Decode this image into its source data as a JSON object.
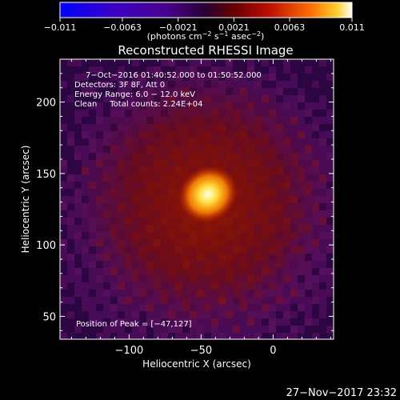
{
  "chart_data": {
    "type": "heatmap",
    "title": "Reconstructed RHESSI Image",
    "xlabel": "Heliocentric X (arcsec)",
    "ylabel": "Heliocentric Y (arcsec)",
    "xlim": [
      -148,
      42
    ],
    "ylim": [
      34,
      230
    ],
    "x_ticks": [
      -100,
      -50,
      0
    ],
    "y_ticks": [
      50,
      100,
      150,
      200
    ],
    "x_tick_labels": [
      "−100",
      "−50",
      "0"
    ],
    "y_tick_labels": [
      "50",
      "100",
      "150",
      "200"
    ],
    "colorbar": {
      "range": [
        -0.011,
        0.011
      ],
      "ticks": [
        -0.011,
        -0.0063,
        -0.0021,
        0.0021,
        0.0063,
        0.011
      ],
      "tick_labels": [
        "−0.011",
        "−0.0063",
        "−0.0021",
        "0.0021",
        "0.0063",
        "0.011"
      ],
      "units_base": "(photons cm",
      "units_exp1": "−2",
      "units_mid": " s",
      "units_exp2": "−1",
      "units_mid2": " asec",
      "units_exp3": "−2",
      "units_end": ")"
    },
    "peak": {
      "x": -47,
      "y": 127
    },
    "info_lines": [
      "7−Oct−2016 01:40:52.000 to 01:50:52.000",
      "Detectors: 3F 8F, Att 0",
      "Energy Range: 6.0 − 12.0 keV",
      "Clean     Total counts: 2.24E+04"
    ],
    "peak_text": "Position of Peak = [−47,127]"
  },
  "timestamp": "27−Nov−2017 23:32"
}
